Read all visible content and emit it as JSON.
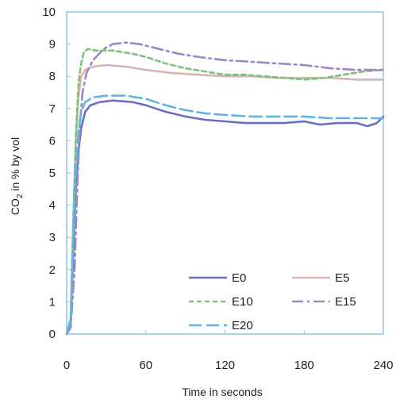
{
  "chart_data": {
    "type": "line",
    "xlabel": "Time in seconds",
    "ylabel_main": "CO",
    "ylabel_sub": "2",
    "ylabel_rest": " in % by vol",
    "xlim": [
      0,
      240
    ],
    "ylim": [
      0,
      10
    ],
    "x_ticks": [
      "0",
      "60",
      "120",
      "180",
      "240"
    ],
    "y_ticks": [
      "0",
      "1",
      "2",
      "3",
      "4",
      "5",
      "6",
      "7",
      "8",
      "9",
      "10"
    ],
    "grid": false,
    "legend_placement": "bottom-right",
    "series": [
      {
        "name": "E0",
        "color": "#6a6fc0",
        "dash": "solid",
        "points": [
          [
            0,
            0
          ],
          [
            3,
            0.3
          ],
          [
            5,
            2.5
          ],
          [
            7,
            4.6
          ],
          [
            9,
            5.7
          ],
          [
            11,
            6.4
          ],
          [
            14,
            6.9
          ],
          [
            18,
            7.1
          ],
          [
            25,
            7.2
          ],
          [
            35,
            7.25
          ],
          [
            50,
            7.2
          ],
          [
            60,
            7.1
          ],
          [
            75,
            6.9
          ],
          [
            90,
            6.75
          ],
          [
            105,
            6.65
          ],
          [
            120,
            6.6
          ],
          [
            135,
            6.55
          ],
          [
            150,
            6.55
          ],
          [
            165,
            6.55
          ],
          [
            180,
            6.6
          ],
          [
            192,
            6.5
          ],
          [
            205,
            6.55
          ],
          [
            220,
            6.55
          ],
          [
            228,
            6.45
          ],
          [
            235,
            6.55
          ],
          [
            240,
            6.75
          ]
        ]
      },
      {
        "name": "E5",
        "color": "#d9b3b3",
        "dash": "solid",
        "points": [
          [
            0,
            0
          ],
          [
            3,
            0.5
          ],
          [
            5,
            3.5
          ],
          [
            7,
            6.0
          ],
          [
            9,
            7.4
          ],
          [
            11,
            8.0
          ],
          [
            14,
            8.2
          ],
          [
            20,
            8.3
          ],
          [
            30,
            8.35
          ],
          [
            45,
            8.3
          ],
          [
            60,
            8.2
          ],
          [
            80,
            8.1
          ],
          [
            100,
            8.05
          ],
          [
            120,
            8.0
          ],
          [
            140,
            8.0
          ],
          [
            160,
            7.95
          ],
          [
            180,
            7.95
          ],
          [
            200,
            7.95
          ],
          [
            220,
            7.9
          ],
          [
            240,
            7.9
          ]
        ]
      },
      {
        "name": "E10",
        "color": "#7ec17a",
        "dash": "6,4",
        "points": [
          [
            0,
            0
          ],
          [
            3,
            0.5
          ],
          [
            5,
            3.5
          ],
          [
            7,
            6.2
          ],
          [
            9,
            7.8
          ],
          [
            11,
            8.4
          ],
          [
            13,
            8.75
          ],
          [
            16,
            8.85
          ],
          [
            22,
            8.8
          ],
          [
            35,
            8.8
          ],
          [
            50,
            8.7
          ],
          [
            60,
            8.6
          ],
          [
            75,
            8.4
          ],
          [
            90,
            8.25
          ],
          [
            105,
            8.15
          ],
          [
            120,
            8.05
          ],
          [
            135,
            8.05
          ],
          [
            150,
            8.0
          ],
          [
            165,
            7.95
          ],
          [
            180,
            7.9
          ],
          [
            195,
            7.95
          ],
          [
            210,
            8.05
          ],
          [
            225,
            8.15
          ],
          [
            240,
            8.2
          ]
        ]
      },
      {
        "name": "E15",
        "color": "#9b86c8",
        "dash": "14,5,3,5",
        "points": [
          [
            0,
            0
          ],
          [
            3,
            0.2
          ],
          [
            6,
            2.0
          ],
          [
            8,
            4.5
          ],
          [
            10,
            6.5
          ],
          [
            12,
            7.5
          ],
          [
            15,
            8.1
          ],
          [
            20,
            8.5
          ],
          [
            28,
            8.85
          ],
          [
            35,
            9.0
          ],
          [
            45,
            9.05
          ],
          [
            55,
            9.0
          ],
          [
            70,
            8.85
          ],
          [
            85,
            8.7
          ],
          [
            100,
            8.6
          ],
          [
            120,
            8.5
          ],
          [
            140,
            8.45
          ],
          [
            160,
            8.4
          ],
          [
            180,
            8.35
          ],
          [
            200,
            8.25
          ],
          [
            220,
            8.2
          ],
          [
            240,
            8.2
          ]
        ]
      },
      {
        "name": "E20",
        "color": "#5fb5dd",
        "dash": "16,6",
        "points": [
          [
            0,
            0
          ],
          [
            3,
            0.4
          ],
          [
            5,
            3.0
          ],
          [
            7,
            5.2
          ],
          [
            9,
            6.3
          ],
          [
            11,
            6.9
          ],
          [
            14,
            7.2
          ],
          [
            20,
            7.35
          ],
          [
            30,
            7.4
          ],
          [
            45,
            7.4
          ],
          [
            60,
            7.3
          ],
          [
            75,
            7.1
          ],
          [
            90,
            6.95
          ],
          [
            105,
            6.85
          ],
          [
            120,
            6.8
          ],
          [
            140,
            6.75
          ],
          [
            160,
            6.75
          ],
          [
            180,
            6.75
          ],
          [
            200,
            6.7
          ],
          [
            220,
            6.7
          ],
          [
            240,
            6.7
          ]
        ]
      }
    ]
  }
}
